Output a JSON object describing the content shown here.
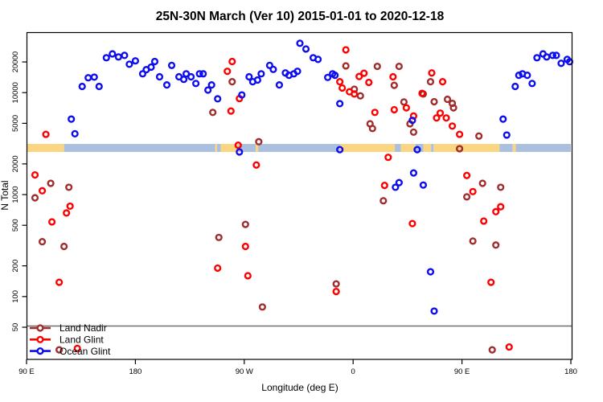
{
  "title": "25N-30N March (Ver 10)   2015-01-01 to 2020-12-18",
  "axes": {
    "y_label": "N Total",
    "x_label": "Longitude (deg E)",
    "y_ticks": [
      {
        "v": 20000,
        "label": "20000"
      },
      {
        "v": 10000,
        "label": "10000"
      },
      {
        "v": 5000,
        "label": "5000"
      },
      {
        "v": 2000,
        "label": "2000"
      },
      {
        "v": 1000,
        "label": "1000"
      },
      {
        "v": 500,
        "label": "500"
      },
      {
        "v": 200,
        "label": "200"
      },
      {
        "v": 100,
        "label": "100"
      },
      {
        "v": 50,
        "label": "50"
      }
    ],
    "x_ticks": [
      {
        "deg": 90,
        "label": "90 E"
      },
      {
        "deg": 180,
        "label": "180"
      },
      {
        "deg": 270,
        "label": "90 W"
      },
      {
        "deg": 360,
        "label": "0"
      },
      {
        "deg": 450,
        "label": "90 E"
      },
      {
        "deg": 540,
        "label": "180"
      }
    ]
  },
  "colors": {
    "land_nadir": "#A02C2C",
    "land_glint": "#FF0000",
    "ocean_glint": "#0D0DEE",
    "band_land": "#FAD582",
    "band_ocean": "#AAC0DE",
    "ref_line": "#6E6E6E",
    "axis": "#000000"
  },
  "ref_line_value": 50,
  "band": {
    "description": "land/ocean surface strip along 25N-30N",
    "segments": [
      {
        "from": 90,
        "to": 121,
        "surface": "land"
      },
      {
        "from": 121,
        "to": 246,
        "surface": "ocean"
      },
      {
        "from": 246,
        "to": 247.5,
        "surface": "land"
      },
      {
        "from": 247.5,
        "to": 250.5,
        "surface": "ocean"
      },
      {
        "from": 250.5,
        "to": 265,
        "surface": "land"
      },
      {
        "from": 265,
        "to": 279.5,
        "surface": "ocean"
      },
      {
        "from": 279.5,
        "to": 281.5,
        "surface": "land"
      },
      {
        "from": 281.5,
        "to": 349,
        "surface": "ocean"
      },
      {
        "from": 349,
        "to": 394.5,
        "surface": "land"
      },
      {
        "from": 394.5,
        "to": 399.5,
        "surface": "ocean"
      },
      {
        "from": 399.5,
        "to": 411.5,
        "surface": "land"
      },
      {
        "from": 411.5,
        "to": 418,
        "surface": "ocean"
      },
      {
        "from": 418,
        "to": 424.5,
        "surface": "land"
      },
      {
        "from": 424.5,
        "to": 426.5,
        "surface": "ocean"
      },
      {
        "from": 426.5,
        "to": 481,
        "surface": "land"
      },
      {
        "from": 481,
        "to": 492,
        "surface": "ocean"
      },
      {
        "from": 492,
        "to": 494.5,
        "surface": "land"
      },
      {
        "from": 494.5,
        "to": 540,
        "surface": "ocean"
      }
    ]
  },
  "legend": [
    {
      "label": "Land Nadir",
      "color_key": "land_nadir"
    },
    {
      "label": "Land Glint",
      "color_key": "land_glint"
    },
    {
      "label": "Ocean Glint",
      "color_key": "ocean_glint"
    }
  ],
  "chart_data": {
    "type": "scatter",
    "title": "25N-30N March (Ver 10)   2015-01-01 to 2020-12-18",
    "xlabel": "Longitude (deg E)",
    "ylabel": "N Total",
    "y_scale": "log",
    "y_domain": [
      24,
      39000
    ],
    "x_axis_note": "degrees east running 90E..180..90W..0..90E..180 (90 to 540 continuous)",
    "x_domain": [
      90,
      540
    ],
    "legend_position": "bottom-left inside plot",
    "grid": false,
    "series": [
      {
        "name": "Land Nadir",
        "color_key": "land_nadir",
        "points": [
          [
            97,
            930
          ],
          [
            103,
            345
          ],
          [
            110,
            1290
          ],
          [
            117,
            30
          ],
          [
            121,
            310
          ],
          [
            125,
            1180
          ],
          [
            244,
            6400
          ],
          [
            249,
            380
          ],
          [
            260,
            12800
          ],
          [
            271,
            510
          ],
          [
            282,
            3300
          ],
          [
            285,
            79
          ],
          [
            346,
            133
          ],
          [
            354,
            18300
          ],
          [
            361,
            10800
          ],
          [
            366,
            9300
          ],
          [
            374,
            4950
          ],
          [
            376,
            4450
          ],
          [
            380,
            18100
          ],
          [
            385,
            870
          ],
          [
            394,
            11800
          ],
          [
            398,
            18100
          ],
          [
            402,
            8100
          ],
          [
            407,
            4950
          ],
          [
            410,
            4100
          ],
          [
            418,
            9700
          ],
          [
            424,
            12800
          ],
          [
            427,
            8150
          ],
          [
            438,
            8600
          ],
          [
            442,
            7850
          ],
          [
            443,
            7100
          ],
          [
            448,
            2820
          ],
          [
            454,
            950
          ],
          [
            459,
            350
          ],
          [
            464,
            3750
          ],
          [
            467,
            1290
          ],
          [
            475,
            30
          ],
          [
            478,
            320
          ],
          [
            482,
            1180
          ]
        ]
      },
      {
        "name": "Land Glint",
        "color_key": "land_glint",
        "points": [
          [
            97,
            1560
          ],
          [
            103,
            1090
          ],
          [
            106,
            3900
          ],
          [
            111,
            540
          ],
          [
            117,
            138
          ],
          [
            123,
            660
          ],
          [
            126,
            770
          ],
          [
            132,
            31
          ],
          [
            248,
            190
          ],
          [
            256,
            16200
          ],
          [
            259,
            6600
          ],
          [
            260,
            20200
          ],
          [
            265,
            3050
          ],
          [
            266,
            8750
          ],
          [
            271,
            310
          ],
          [
            273,
            160
          ],
          [
            280,
            1950
          ],
          [
            346,
            112
          ],
          [
            349,
            12800
          ],
          [
            351,
            11100
          ],
          [
            354,
            26300
          ],
          [
            357,
            10200
          ],
          [
            361,
            9700
          ],
          [
            365,
            14400
          ],
          [
            369,
            15500
          ],
          [
            373,
            12600
          ],
          [
            378,
            6400
          ],
          [
            386,
            1230
          ],
          [
            389,
            2320
          ],
          [
            393,
            14300
          ],
          [
            394,
            6800
          ],
          [
            404,
            7100
          ],
          [
            409,
            520
          ],
          [
            410,
            5900
          ],
          [
            417,
            9850
          ],
          [
            425,
            15600
          ],
          [
            429,
            5650
          ],
          [
            432,
            6300
          ],
          [
            434,
            12800
          ],
          [
            437,
            5650
          ],
          [
            442,
            4700
          ],
          [
            448,
            3900
          ],
          [
            454,
            1540
          ],
          [
            459,
            1070
          ],
          [
            468,
            550
          ],
          [
            474,
            138
          ],
          [
            478,
            680
          ],
          [
            482,
            760
          ],
          [
            489,
            32
          ]
        ]
      },
      {
        "name": "Ocean Glint",
        "color_key": "ocean_glint",
        "points": [
          [
            127,
            5500
          ],
          [
            130,
            3950
          ],
          [
            136,
            11500
          ],
          [
            141,
            14000
          ],
          [
            146,
            14200
          ],
          [
            150,
            11500
          ],
          [
            156,
            22000
          ],
          [
            161,
            24000
          ],
          [
            166,
            22400
          ],
          [
            171,
            23200
          ],
          [
            175,
            19000
          ],
          [
            180,
            20500
          ],
          [
            186,
            15300
          ],
          [
            189,
            16800
          ],
          [
            193,
            17800
          ],
          [
            196,
            20200
          ],
          [
            200,
            14300
          ],
          [
            206,
            11900
          ],
          [
            210,
            18500
          ],
          [
            216,
            14300
          ],
          [
            220,
            13500
          ],
          [
            222,
            15300
          ],
          [
            226,
            14300
          ],
          [
            230,
            12300
          ],
          [
            233,
            15300
          ],
          [
            236,
            15300
          ],
          [
            240,
            10600
          ],
          [
            243,
            11900
          ],
          [
            248,
            8700
          ],
          [
            266,
            2620
          ],
          [
            268,
            9500
          ],
          [
            274,
            14300
          ],
          [
            277,
            12800
          ],
          [
            281,
            13300
          ],
          [
            284,
            15300
          ],
          [
            291,
            18500
          ],
          [
            294,
            16900
          ],
          [
            299,
            11900
          ],
          [
            304,
            15600
          ],
          [
            307,
            14800
          ],
          [
            311,
            15300
          ],
          [
            314,
            16200
          ],
          [
            316,
            30500
          ],
          [
            321,
            26800
          ],
          [
            327,
            22000
          ],
          [
            331,
            21200
          ],
          [
            339,
            14100
          ],
          [
            343,
            15300
          ],
          [
            345,
            14800
          ],
          [
            349,
            7800
          ],
          [
            349,
            2760
          ],
          [
            395,
            1180
          ],
          [
            398,
            1310
          ],
          [
            409,
            5350
          ],
          [
            410,
            1630
          ],
          [
            413,
            2760
          ],
          [
            418,
            1240
          ],
          [
            424,
            175
          ],
          [
            427,
            72
          ],
          [
            484,
            5500
          ],
          [
            487,
            3840
          ],
          [
            494,
            11500
          ],
          [
            497,
            14800
          ],
          [
            500,
            15300
          ],
          [
            504,
            14800
          ],
          [
            508,
            12300
          ],
          [
            512,
            22000
          ],
          [
            517,
            24000
          ],
          [
            520,
            22400
          ],
          [
            525,
            23200
          ],
          [
            528,
            23200
          ],
          [
            532,
            19400
          ],
          [
            537,
            21200
          ],
          [
            539,
            20100
          ]
        ]
      }
    ]
  }
}
